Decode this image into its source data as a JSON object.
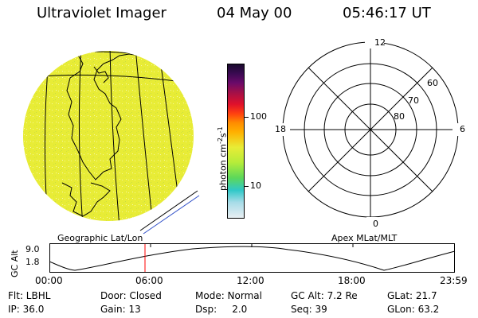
{
  "header": {
    "title": "Ultraviolet Imager",
    "date": "04 May 00",
    "time": "05:46:17 UT"
  },
  "colors": {
    "earth_fill": "#e8ec36",
    "marker": "#ff0000",
    "line": "#000000"
  },
  "colorbar": {
    "unit": "photon cm",
    "unit_sup1": "-2",
    "unit_mid": "s",
    "unit_sup2": "-1",
    "tick_high": "100",
    "tick_low": "10",
    "stops": [
      "#1a0a2e",
      "#3a0a52",
      "#6a0a6a",
      "#a0104a",
      "#e0102a",
      "#ff4010",
      "#ff8c00",
      "#ffb000",
      "#e8ec36",
      "#b6ec3a",
      "#5cd85a",
      "#30c8c8",
      "#a8dce8",
      "#e8eef2"
    ]
  },
  "left_panel": {
    "caption": "Geographic Lat/Lon"
  },
  "right_panel": {
    "caption": "Apex MLat/MLT",
    "mlt_top": "12",
    "mlt_left": "18",
    "mlt_right": "6",
    "mlt_bottom": "0",
    "lat_labels": [
      "80",
      "70",
      "60"
    ]
  },
  "altitude_plot": {
    "axis_label": "GC Alt",
    "ytick_top": "9.0",
    "ytick_bottom": "1.8",
    "xticks": [
      "00:00",
      "06:00",
      "12:00",
      "18:00",
      "23:59"
    ],
    "current_time": "05:46"
  },
  "info": {
    "row1": {
      "flt": "Flt: LBHL",
      "door": "Door: Closed",
      "mode": "Mode: Normal",
      "gcalt": "GC Alt: 7.2 Re",
      "glat": "GLat:  21.7"
    },
    "row2": {
      "ip": "IP: 36.0",
      "gain": "Gain: 13",
      "dsp": "Dsp:     2.0",
      "seq": "Seq: 39",
      "glon": "GLon:  63.2"
    }
  }
}
